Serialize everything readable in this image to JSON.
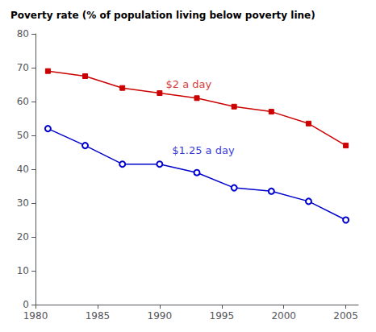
{
  "chart_data": {
    "type": "line",
    "title": "Poverty rate (% of population living below poverty line)",
    "xlim": [
      1980,
      2006
    ],
    "ylim": [
      0,
      80
    ],
    "xticks": [
      1980,
      1985,
      1990,
      1995,
      2000,
      2005
    ],
    "yticks": [
      0,
      10,
      20,
      30,
      40,
      50,
      60,
      70,
      80
    ],
    "grid": false,
    "series": [
      {
        "name": "$2 a day",
        "color": "#cc0000",
        "marker": "square",
        "x": [
          1981,
          1984,
          1987,
          1990,
          1993,
          1996,
          1999,
          2002,
          2005
        ],
        "values": [
          69.0,
          67.5,
          64.0,
          62.5,
          61.0,
          58.5,
          57.0,
          53.5,
          47.0
        ]
      },
      {
        "name": "$1.25 a day",
        "color": "#0000cc",
        "marker": "circle",
        "x": [
          1981,
          1984,
          1987,
          1990,
          1993,
          1996,
          1999,
          2002,
          2005
        ],
        "values": [
          52.0,
          47.0,
          41.5,
          41.5,
          39.0,
          34.5,
          33.5,
          30.5,
          25.0
        ]
      }
    ],
    "annotations": [
      {
        "text": "$2 a day",
        "x": 1990.5,
        "y": 63.5,
        "color": "#cc0000"
      },
      {
        "text": "$1.25 a day",
        "x": 1991.0,
        "y": 44.0,
        "color": "#0000cc"
      }
    ]
  }
}
